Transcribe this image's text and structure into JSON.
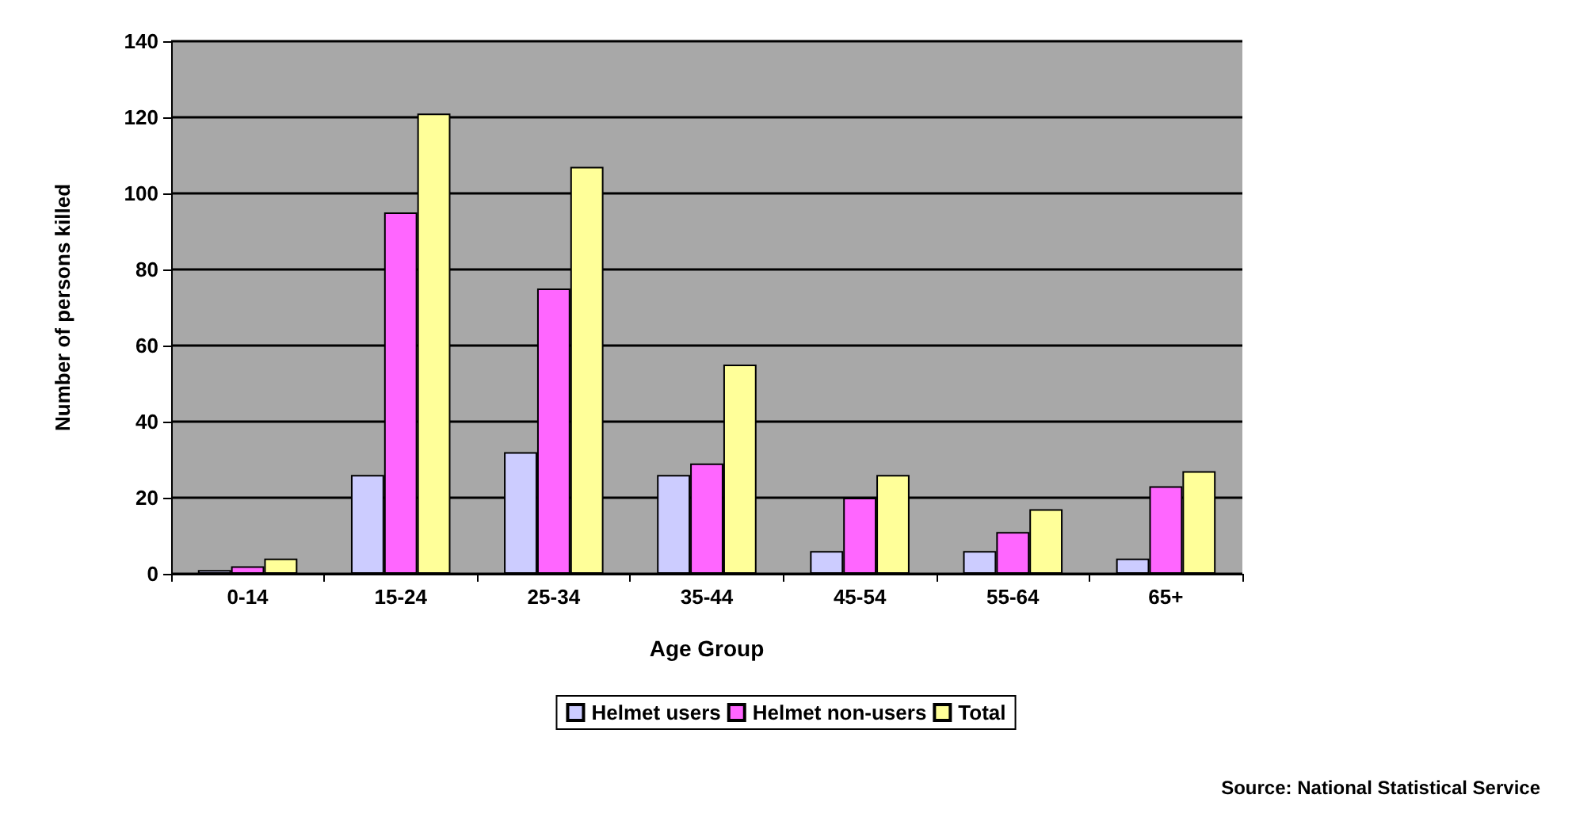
{
  "chart_data": {
    "type": "bar",
    "xlabel": "Age Group",
    "ylabel": "Number of persons killed",
    "categories": [
      "0-14",
      "15-24",
      "25-34",
      "35-44",
      "45-54",
      "55-64",
      "65+"
    ],
    "series": [
      {
        "name": "Helmet users",
        "color": "#ccccff",
        "values": [
          1,
          26,
          32,
          26,
          6,
          6,
          4
        ]
      },
      {
        "name": "Helmet non-users",
        "color": "#ff66ff",
        "values": [
          2,
          95,
          75,
          29,
          20,
          11,
          23
        ]
      },
      {
        "name": "Total",
        "color": "#ffff99",
        "values": [
          4,
          121,
          107,
          55,
          26,
          17,
          27
        ]
      }
    ],
    "ylim": [
      0,
      140
    ],
    "yticks": [
      0,
      20,
      40,
      60,
      80,
      100,
      120,
      140
    ],
    "grid": "y",
    "legend": "bottom",
    "annotations": [
      "Source: National Statistical Service"
    ]
  }
}
